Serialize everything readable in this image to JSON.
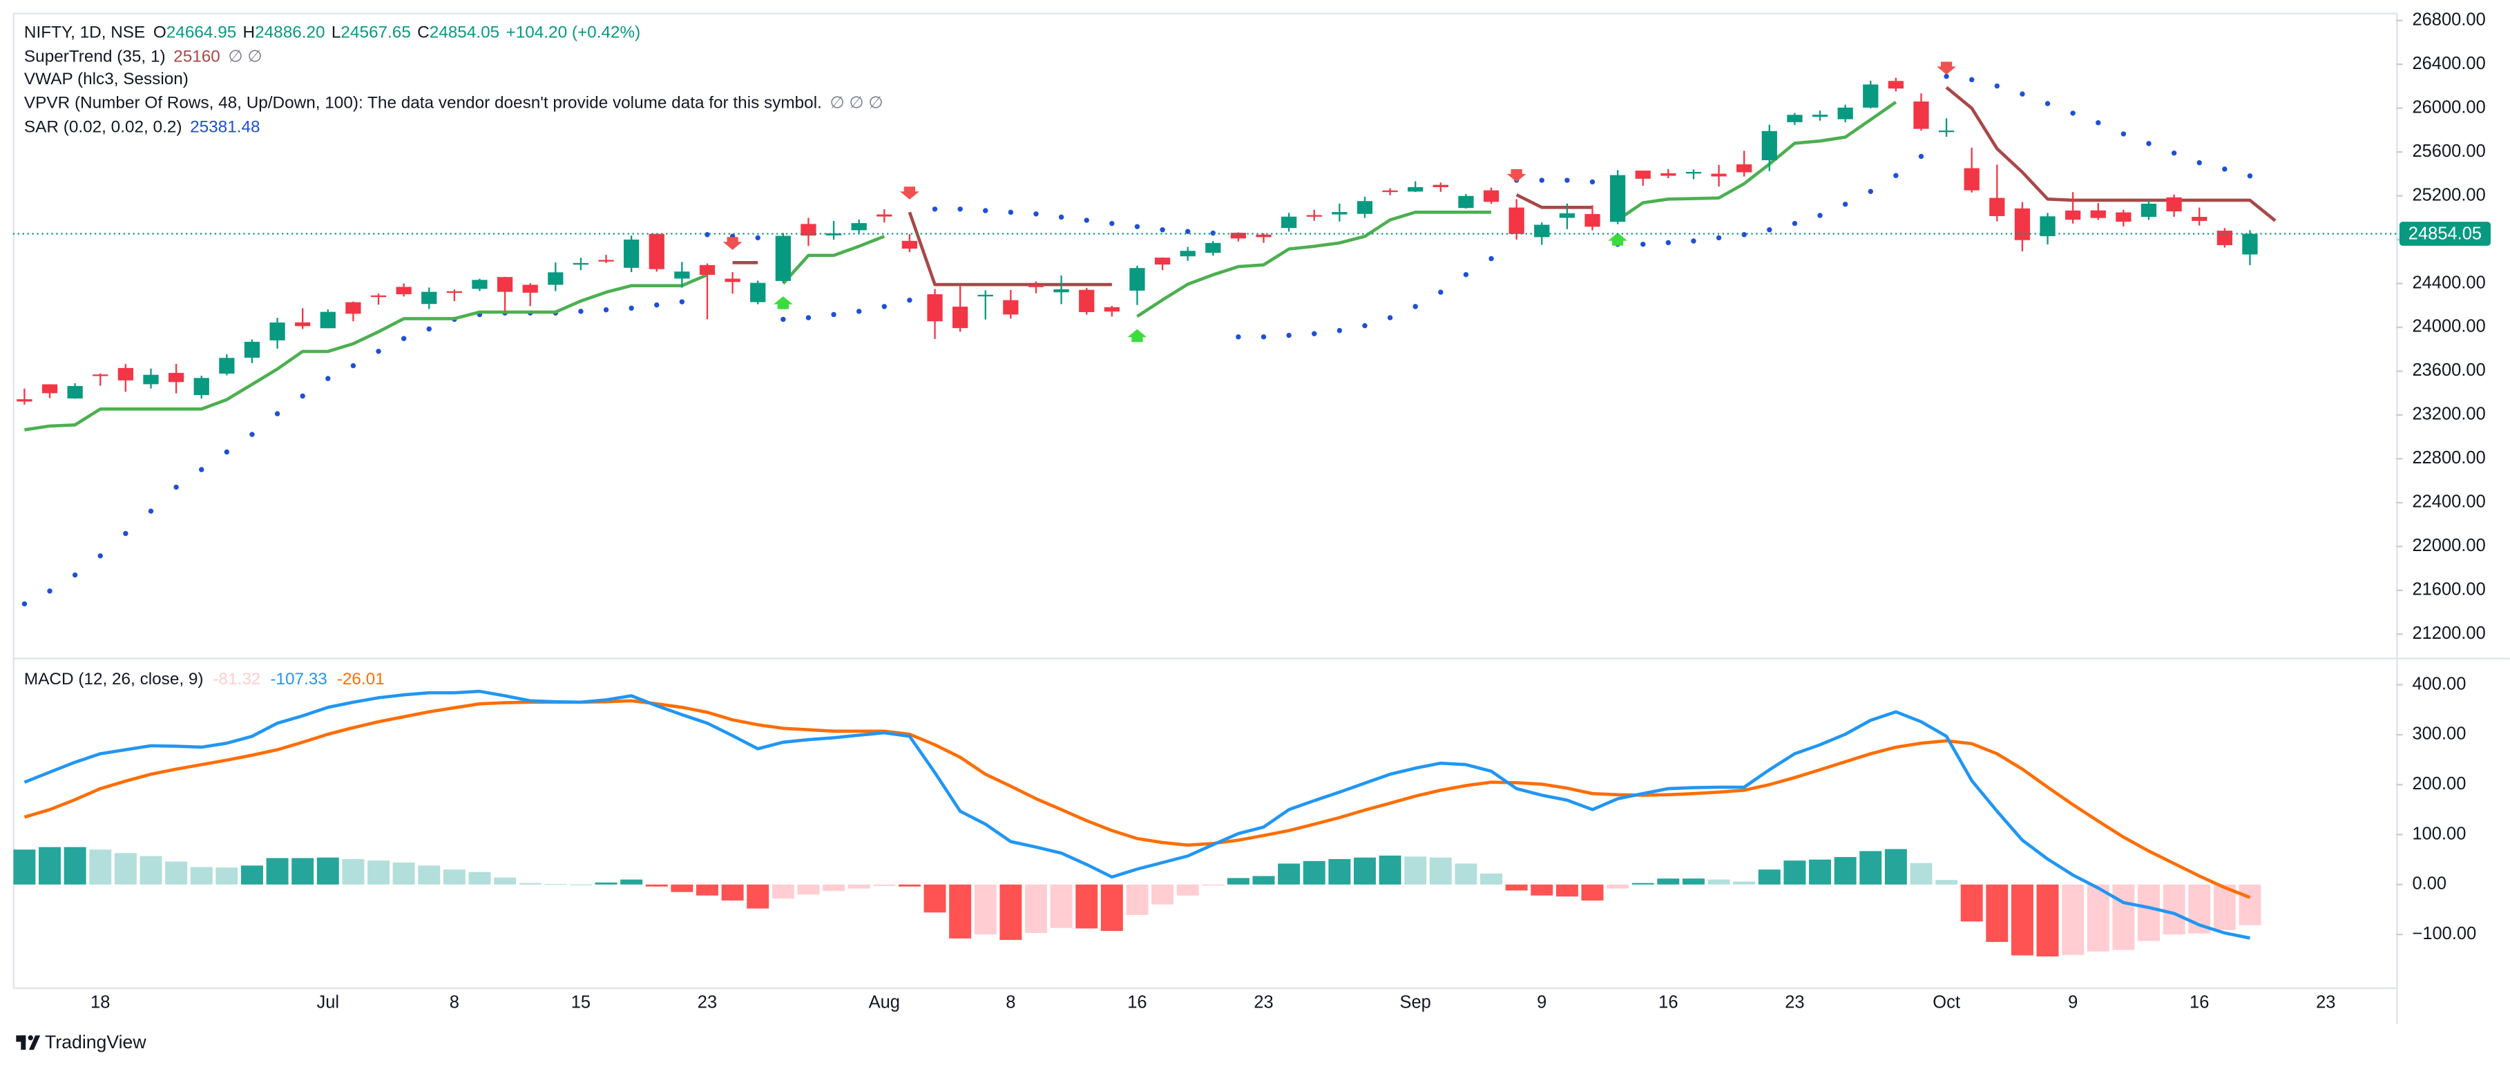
{
  "chart_data": [
    {
      "type": "candlestick",
      "symbol": "NIFTY, 1D, NSE",
      "ohlc_labels": [
        "O",
        "H",
        "L",
        "C"
      ],
      "ohlc_values": [
        "24664.95",
        "24886.20",
        "24567.65",
        "24854.05"
      ],
      "change": "+104.20 (+0.42%)",
      "categories": [
        null,
        null,
        null,
        "18",
        null,
        null,
        null,
        null,
        null,
        null,
        null,
        null,
        "Jul",
        null,
        null,
        null,
        null,
        "8",
        null,
        null,
        null,
        null,
        "15",
        null,
        null,
        null,
        null,
        "23",
        null,
        null,
        null,
        null,
        null,
        null,
        "Aug",
        null,
        null,
        null,
        null,
        "8",
        null,
        null,
        null,
        null,
        "16",
        null,
        null,
        null,
        null,
        "23",
        null,
        null,
        null,
        null,
        null,
        "Sep",
        null,
        null,
        null,
        null,
        "9",
        null,
        null,
        null,
        null,
        "16",
        null,
        null,
        null,
        null,
        "23",
        null,
        null,
        null,
        null,
        null,
        "Oct",
        null,
        null,
        null,
        null,
        "9",
        null,
        null,
        null,
        null,
        "16",
        null,
        null,
        null,
        null,
        "23"
      ],
      "open": [
        23344,
        23480,
        23351,
        23570,
        23629,
        23481,
        23584,
        23382,
        23578,
        23723,
        23881,
        24045,
        23992,
        24229,
        24291,
        24369,
        24213,
        24329,
        24351,
        24459,
        24388,
        24388,
        24572,
        24615,
        24543,
        24853,
        24445,
        24568,
        24444,
        24230,
        24423,
        24943,
        24839,
        24886,
        25030,
        24789,
        24302,
        24189,
        24289,
        24248,
        24387,
        24320,
        24342,
        24184,
        24335,
        24636,
        24648,
        24680,
        24863,
        24846,
        24906,
        25024,
        25030,
        25035,
        25249,
        25239,
        25300,
        25089,
        25250,
        25093,
        24823,
        24999,
        25034,
        24963,
        25430,
        25406,
        25417,
        25402,
        25487,
        25525,
        25872,
        25921,
        25899,
        26005,
        26248,
        26061,
        25788,
        25452,
        25181,
        25085,
        24832,
        25066,
        25067,
        25049,
        25008,
        25186,
        25008,
        24882,
        24664.95,
        null,
        null,
        null
      ],
      "high": [
        23441,
        23481,
        23490,
        23579,
        23665,
        23624,
        23667,
        23558,
        23754,
        23889,
        24087,
        24174,
        24164,
        24236,
        24309,
        24401,
        24363,
        24345,
        24443,
        24461,
        24402,
        24592,
        24635,
        24661,
        24837,
        24855,
        24596,
        24583,
        24504,
        24426,
        24861,
        24999,
        24971,
        24984,
        25078,
        24851,
        24350,
        24382,
        24337,
        24340,
        24419,
        24473,
        24360,
        24196,
        24563,
        24638,
        24734,
        24787,
        24867,
        24858,
        25044,
        25073,
        25129,
        25192,
        25269,
        25333,
        25321,
        25216,
        25275,
        25169,
        24957,
        25130,
        25114,
        25434,
        25430,
        25445,
        25441,
        25482,
        25611,
        25849,
        25956,
        25978,
        26032,
        26250,
        26277,
        26135,
        25907,
        25639,
        25485,
        25143,
        25044,
        25234,
        25134,
        25073,
        25159,
        25212,
        25093,
        24906,
        24886.2,
        null,
        null,
        null
      ],
      "low": [
        23295,
        23354,
        23348,
        23467,
        23412,
        23442,
        23398,
        23350,
        23562,
        23673,
        23806,
        23985,
        23992,
        24056,
        24207,
        24281,
        24168,
        24240,
        24331,
        24141,
        24193,
        24331,
        24522,
        24587,
        24504,
        24508,
        24362,
        24074,
        24307,
        24211,
        24410,
        24742,
        24799,
        24856,
        24956,
        24686,
        23894,
        23960,
        24071,
        24079,
        24311,
        24212,
        24116,
        24099,
        24204,
        24522,
        24607,
        24654,
        24784,
        24771,
        24874,
        24973,
        24965,
        24998,
        25206,
        25235,
        25236,
        25083,
        25127,
        24801,
        24753,
        24896,
        24885,
        24941,
        25292,
        25361,
        25352,
        25285,
        25376,
        25426,
        25847,
        25886,
        25871,
        25998,
        26152,
        25794,
        25739,
        25230,
        24967,
        24694,
        24756,
        24947,
        24980,
        24921,
        24980,
        25008,
        24929,
        24728,
        24567.65,
        null,
        null,
        null
      ],
      "close": [
        23323,
        23399,
        23465,
        23558,
        23516,
        23567,
        23501,
        23538,
        23721,
        23868,
        24044,
        24011,
        24141,
        24124,
        24287,
        24302,
        24324,
        24321,
        24433,
        24324,
        24316,
        24502,
        24587,
        24613,
        24801,
        24531,
        24509,
        24479,
        24414,
        24406,
        24835,
        24837,
        24857,
        24951,
        25011,
        24718,
        24055,
        23993,
        24297,
        24117,
        24367,
        24347,
        24139,
        24144,
        24541,
        24573,
        24698,
        24770,
        24811,
        24823,
        25010,
        25017,
        25052,
        25152,
        25236,
        25279,
        25279,
        25199,
        25145,
        24852,
        24936,
        25041,
        24918,
        25389,
        25356,
        25383,
        25418,
        25377,
        25415,
        25791,
        25939,
        25940,
        26005,
        26216,
        26179,
        25811,
        25796,
        25250,
        25015,
        24796,
        25013,
        24982,
        24998,
        24964,
        25128,
        25058,
        24971,
        24750,
        24854.05,
        null,
        null,
        null
      ],
      "up_color": "#089981",
      "down_color": "#f23645",
      "ylim": [
        21000,
        26870
      ],
      "yticks": [
        {
          "value": 26800,
          "label": "26800.00"
        },
        {
          "value": 26400,
          "label": "26400.00"
        },
        {
          "value": 26000,
          "label": "26000.00"
        },
        {
          "value": 25600,
          "label": "25600.00"
        },
        {
          "value": 25200,
          "label": "25200.00"
        },
        {
          "value": 24800,
          "label": "24800.00"
        },
        {
          "value": 24400,
          "label": "24400.00"
        },
        {
          "value": 24000,
          "label": "24000.00"
        },
        {
          "value": 23600,
          "label": "23600.00"
        },
        {
          "value": 23200,
          "label": "23200.00"
        },
        {
          "value": 22800,
          "label": "22800.00"
        },
        {
          "value": 22400,
          "label": "22400.00"
        },
        {
          "value": 22000,
          "label": "22000.00"
        },
        {
          "value": 21600,
          "label": "21600.00"
        },
        {
          "value": 21200,
          "label": "21200.00"
        }
      ],
      "supertrend": {
        "name": "SuperTrend (35, 1)",
        "flags": "∅ ∅",
        "up_color": "#4caf50",
        "down_color": "#a84848",
        "up": [
          23065,
          23100,
          23110,
          23255,
          23255,
          23255,
          23255,
          23255,
          23340,
          23480,
          23620,
          23780,
          23780,
          23850,
          23960,
          24080,
          24080,
          24080,
          24140,
          24140,
          24140,
          24140,
          24240,
          24320,
          24380,
          24380,
          24380,
          24480,
          null,
          null,
          24400,
          24656,
          24656,
          24740,
          24830,
          null,
          null,
          null,
          null,
          null,
          null,
          null,
          null,
          null,
          24100,
          24250,
          24394,
          24480,
          24554,
          24570,
          24715,
          24740,
          24770,
          24830,
          24980,
          25050,
          25050,
          25050,
          25050,
          null,
          null,
          null,
          null,
          24980,
          25137,
          25170,
          25175,
          25180,
          25310,
          25490,
          25680,
          25700,
          25735,
          25895,
          26055,
          null,
          null,
          null,
          null,
          null,
          null,
          null,
          null,
          null,
          null,
          null,
          null,
          null,
          null,
          null,
          null,
          null
        ],
        "down": [
          null,
          null,
          null,
          null,
          null,
          null,
          null,
          null,
          null,
          null,
          null,
          null,
          null,
          null,
          null,
          null,
          null,
          null,
          null,
          null,
          null,
          null,
          null,
          null,
          null,
          null,
          null,
          null,
          24590,
          24590,
          null,
          null,
          null,
          null,
          null,
          25050,
          24390,
          24390,
          24390,
          24390,
          24390,
          24390,
          24390,
          24390,
          null,
          null,
          null,
          null,
          null,
          null,
          null,
          null,
          null,
          null,
          null,
          null,
          null,
          null,
          null,
          25210,
          25094,
          25094,
          25094,
          null,
          null,
          null,
          null,
          null,
          null,
          null,
          null,
          null,
          null,
          null,
          null,
          null,
          26190,
          26000,
          25630,
          25415,
          25170,
          25160,
          25160,
          25160,
          25160,
          25160,
          25160,
          25160,
          25160,
          24972.63,
          null,
          null,
          null
        ]
      },
      "vwap": {
        "name": "VWAP (hlc3, Session)"
      },
      "vpvr": {
        "name": "VPVR (Number Of Rows, 48, Up/Down, 100): The data vendor doesn't provide volume data for this symbol.",
        "flags": "∅ ∅ ∅"
      },
      "sar": {
        "name": "SAR (0.02, 0.02, 0.2)",
        "color": "#1e4fd8",
        "values": [
          21477,
          21594,
          21740,
          21915,
          22119,
          22323,
          22542,
          22702,
          22863,
          23023,
          23212,
          23373,
          23533,
          23650,
          23781,
          23898,
          23985,
          24073,
          24117,
          24131,
          24131,
          24131,
          24146,
          24160,
          24175,
          24204,
          24233,
          24846,
          24831,
          24817,
          24073,
          24088,
          24117,
          24146,
          24190,
          24248,
          25079,
          25079,
          25065,
          25050,
          25035,
          25006,
          24977,
          24948,
          24919,
          24890,
          24875,
          24860,
          23913,
          23913,
          23927,
          23942,
          23971,
          24015,
          24088,
          24190,
          24321,
          24481,
          24627,
          25342,
          25342,
          25342,
          25327,
          24758,
          24758,
          24773,
          24788,
          24817,
          24846,
          24890,
          24948,
          25021,
          25123,
          25240,
          25385,
          25560,
          26290,
          26260,
          26202,
          26129,
          26042,
          25954,
          25867,
          25765,
          25677,
          25590,
          25502,
          25444,
          25381.48,
          null,
          null,
          null
        ]
      }
    },
    {
      "type": "macd",
      "name": "MACD (12, 26, close, 9)",
      "ylim": [
        -206,
        451
      ],
      "yticks": [
        {
          "value": 400,
          "label": "400.00"
        },
        {
          "value": 300,
          "label": "300.00"
        },
        {
          "value": 200,
          "label": "200.00"
        },
        {
          "value": 100,
          "label": "100.00"
        },
        {
          "value": 0,
          "label": "0.00"
        },
        {
          "value": -100,
          "label": "−100.00"
        }
      ],
      "histogram": {
        "colors": {
          "pos_up": "#26a69a",
          "pos_down": "#b2dfdb",
          "neg_up": "#ffcdd2",
          "neg_down": "#ff5252"
        },
        "values": [
          70,
          75,
          75,
          70,
          63,
          57,
          46,
          35,
          34,
          38,
          53,
          53,
          54,
          51,
          48,
          44,
          38,
          30,
          25,
          14,
          3,
          1,
          0,
          4,
          10,
          -4,
          -15,
          -22,
          -32,
          -48,
          -28,
          -20,
          -13,
          -8,
          -3,
          -4,
          -56,
          -108,
          -100,
          -111,
          -97,
          -87,
          -88,
          -93,
          -61,
          -40,
          -22,
          -2,
          13,
          17,
          42,
          47,
          51,
          54,
          58,
          56,
          54,
          42,
          22,
          -12,
          -22,
          -24,
          -32,
          -8,
          3,
          12,
          12,
          10,
          6,
          30,
          48,
          50,
          55,
          67,
          71,
          43,
          9,
          -74,
          -115,
          -142,
          -144,
          -141,
          -134,
          -131,
          -113,
          -100,
          -98,
          -91,
          -81.32,
          null,
          null,
          null
        ]
      },
      "macd": {
        "color": "#2196f3",
        "values": [
          205,
          225,
          245,
          262,
          270,
          278,
          277,
          275,
          283,
          297,
          323,
          338,
          355,
          365,
          374,
          380,
          384,
          384,
          387,
          378,
          368,
          366,
          365,
          370,
          378,
          358,
          340,
          323,
          298,
          272,
          285,
          290,
          294,
          299,
          304,
          297,
          224,
          147,
          121,
          86,
          75,
          63,
          40,
          15,
          31,
          44,
          57,
          80,
          102,
          115,
          150,
          168,
          185,
          203,
          221,
          233,
          243,
          240,
          227,
          192,
          179,
          169,
          150,
          172,
          182,
          192,
          194,
          195,
          195,
          230,
          262,
          280,
          301,
          329,
          346,
          326,
          297,
          208,
          147,
          89,
          51,
          19,
          -7,
          -36,
          -46,
          -58,
          -81,
          -97,
          -107.33,
          null,
          null,
          null
        ]
      },
      "signal": {
        "color": "#ff6d00",
        "values": [
          135,
          150,
          170,
          192,
          207,
          221,
          231,
          240,
          249,
          259,
          270,
          285,
          301,
          314,
          326,
          336,
          346,
          354,
          362,
          364,
          365,
          365,
          365,
          366,
          368,
          362,
          355,
          345,
          330,
          320,
          313,
          310,
          307,
          307,
          307,
          301,
          280,
          255,
          221,
          197,
          172,
          150,
          128,
          108,
          92,
          84,
          79,
          82,
          89,
          98,
          108,
          121,
          134,
          149,
          163,
          177,
          189,
          198,
          205,
          204,
          201,
          193,
          182,
          180,
          179,
          180,
          182,
          185,
          189,
          200,
          214,
          230,
          246,
          262,
          275,
          283,
          288,
          282,
          262,
          231,
          195,
          160,
          127,
          95,
          67,
          42,
          17,
          -6,
          -26.01,
          null,
          null,
          null
        ]
      }
    }
  ],
  "footer": "TradingView"
}
